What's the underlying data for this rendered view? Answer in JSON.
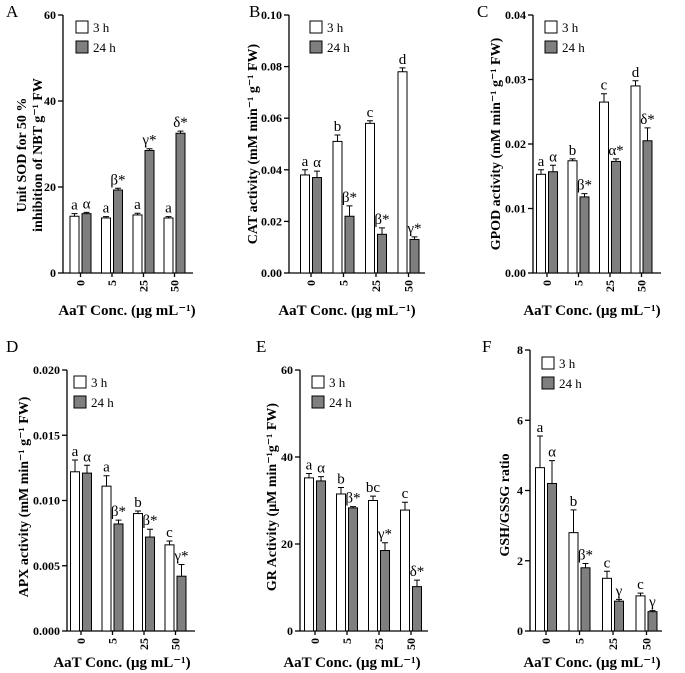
{
  "chart_data": [
    {
      "panel": "A",
      "type": "bar",
      "categories": [
        "0",
        "5",
        "25",
        "50"
      ],
      "xlabel": "AaT Conc. (μg mL⁻¹)",
      "ylabel": [
        "Unit SOD for 50 %",
        "inhibition of NBT g⁻¹ FW"
      ],
      "ylim": [
        0,
        60
      ],
      "yticks": [
        0,
        20,
        40,
        60
      ],
      "ytick_labels": [
        "0",
        "20",
        "40",
        "60"
      ],
      "legend": "top-left",
      "series": [
        {
          "name": "3 h",
          "color": "#ffffff",
          "values": [
            13.2,
            12.8,
            13.5,
            12.8
          ],
          "errors": [
            0.6,
            0.3,
            0.4,
            0.3
          ],
          "labels": [
            "a",
            "a",
            "a",
            "a"
          ]
        },
        {
          "name": "24 h",
          "color": "#7f7f7f",
          "values": [
            13.8,
            19.3,
            28.5,
            32.5
          ],
          "errors": [
            0.3,
            0.4,
            0.4,
            0.5
          ],
          "labels": [
            "α",
            "β*",
            "γ*",
            "δ*"
          ]
        }
      ]
    },
    {
      "panel": "B",
      "type": "bar",
      "categories": [
        "0",
        "5",
        "25",
        "50"
      ],
      "xlabel": "AaT Conc. (μg mL⁻¹)",
      "ylabel": [
        "CAT activity (mM min⁻¹ g⁻¹ FW)"
      ],
      "ylim": [
        0,
        0.1
      ],
      "yticks": [
        0,
        0.02,
        0.04,
        0.06,
        0.08,
        0.1
      ],
      "ytick_labels": [
        "0.00",
        "0.02",
        "0.04",
        "0.06",
        "0.08",
        "0.10"
      ],
      "legend": "top-left",
      "series": [
        {
          "name": "3 h",
          "color": "#ffffff",
          "values": [
            0.038,
            0.051,
            0.058,
            0.078
          ],
          "errors": [
            0.002,
            0.0025,
            0.001,
            0.0015
          ],
          "labels": [
            "a",
            "b",
            "c",
            "d"
          ]
        },
        {
          "name": "24 h",
          "color": "#7f7f7f",
          "values": [
            0.037,
            0.022,
            0.015,
            0.013
          ],
          "errors": [
            0.0025,
            0.004,
            0.0025,
            0.001
          ],
          "labels": [
            "α",
            "β*",
            "β*",
            "γ*"
          ]
        }
      ]
    },
    {
      "panel": "C",
      "type": "bar",
      "categories": [
        "0",
        "5",
        "25",
        "50"
      ],
      "xlabel": "AaT Conc. (μg mL⁻¹)",
      "ylabel": [
        "GPOD activity (mM min⁻¹ g⁻¹ FW)"
      ],
      "ylim": [
        0,
        0.04
      ],
      "yticks": [
        0,
        0.01,
        0.02,
        0.03,
        0.04
      ],
      "ytick_labels": [
        "0.00",
        "0.01",
        "0.02",
        "0.03",
        "0.04"
      ],
      "legend": "top-left",
      "series": [
        {
          "name": "3 h",
          "color": "#ffffff",
          "values": [
            0.0153,
            0.0174,
            0.0265,
            0.029
          ],
          "errors": [
            0.0007,
            0.0003,
            0.0013,
            0.0008
          ],
          "labels": [
            "a",
            "b",
            "c",
            "d"
          ]
        },
        {
          "name": "24 h",
          "color": "#7f7f7f",
          "values": [
            0.0157,
            0.0118,
            0.0173,
            0.0205
          ],
          "errors": [
            0.001,
            0.0005,
            0.0004,
            0.002
          ],
          "labels": [
            "α",
            "β*",
            "α*",
            "δ*"
          ]
        }
      ]
    },
    {
      "panel": "D",
      "type": "bar",
      "categories": [
        "0",
        "5",
        "25",
        "50"
      ],
      "xlabel": "AaT Conc. (μg mL⁻¹)",
      "ylabel": [
        "APX activity (mM min⁻¹ g⁻¹ FW)"
      ],
      "ylim": [
        0,
        0.02
      ],
      "yticks": [
        0,
        0.005,
        0.01,
        0.015,
        0.02
      ],
      "ytick_labels": [
        "0.000",
        "0.005",
        "0.010",
        "0.015",
        "0.020"
      ],
      "legend": "top-left",
      "series": [
        {
          "name": "3 h",
          "color": "#ffffff",
          "values": [
            0.0122,
            0.0111,
            0.009,
            0.0066
          ],
          "errors": [
            0.0009,
            0.0008,
            0.0002,
            0.0003
          ],
          "labels": [
            "a",
            "a",
            "b",
            "c"
          ]
        },
        {
          "name": "24 h",
          "color": "#7f7f7f",
          "values": [
            0.0121,
            0.0082,
            0.0072,
            0.0042
          ],
          "errors": [
            0.0006,
            0.0003,
            0.0006,
            0.0009
          ],
          "labels": [
            "α",
            "β*",
            "β*",
            "γ*"
          ]
        }
      ]
    },
    {
      "panel": "E",
      "type": "bar",
      "categories": [
        "0",
        "5",
        "25",
        "50"
      ],
      "xlabel": "AaT Conc. (μg mL⁻¹)",
      "ylabel": [
        "GR Activity (μM min⁻¹g⁻¹ FW)"
      ],
      "ylim": [
        0,
        60
      ],
      "yticks": [
        0,
        20,
        40,
        60
      ],
      "ytick_labels": [
        "0",
        "20",
        "40",
        "60"
      ],
      "legend": "top-left",
      "series": [
        {
          "name": "3 h",
          "color": "#ffffff",
          "values": [
            35.2,
            31.5,
            30.0,
            27.8
          ],
          "errors": [
            1.0,
            1.5,
            1.0,
            1.8
          ],
          "labels": [
            "a",
            "b",
            "bc",
            "c"
          ]
        },
        {
          "name": "24 h",
          "color": "#7f7f7f",
          "values": [
            34.5,
            28.3,
            18.5,
            10.2
          ],
          "errors": [
            1.0,
            0.3,
            1.8,
            1.5
          ],
          "labels": [
            "α",
            "β*",
            "γ*",
            "δ*"
          ]
        }
      ]
    },
    {
      "panel": "F",
      "type": "bar",
      "categories": [
        "0",
        "5",
        "25",
        "50"
      ],
      "xlabel": "AaT Conc. (μg mL⁻¹)",
      "ylabel": [
        "GSH/GSSG ratio"
      ],
      "ylim": [
        0,
        8
      ],
      "yticks": [
        0,
        2,
        4,
        6,
        8
      ],
      "ytick_labels": [
        "0",
        "2",
        "4",
        "6",
        "8"
      ],
      "legend": "top-left",
      "series": [
        {
          "name": "3 h",
          "color": "#ffffff",
          "values": [
            4.65,
            2.8,
            1.5,
            1.0
          ],
          "errors": [
            0.9,
            0.65,
            0.2,
            0.08
          ],
          "labels": [
            "a",
            "b",
            "c",
            "c"
          ]
        },
        {
          "name": "24 h",
          "color": "#7f7f7f",
          "values": [
            4.2,
            1.8,
            0.85,
            0.55
          ],
          "errors": [
            0.65,
            0.12,
            0.05,
            0.03
          ],
          "labels": [
            "α",
            "β*",
            "γ",
            "γ"
          ]
        }
      ]
    }
  ]
}
